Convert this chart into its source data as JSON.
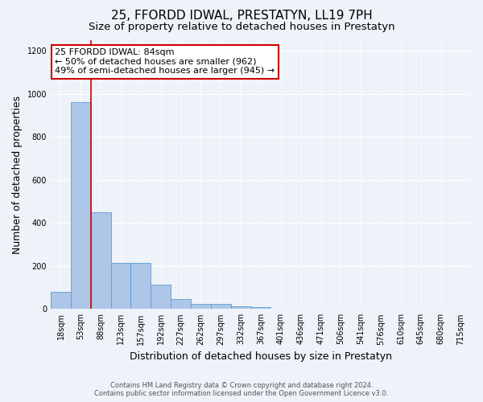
{
  "title": "25, FFORDD IDWAL, PRESTATYN, LL19 7PH",
  "subtitle": "Size of property relative to detached houses in Prestatyn",
  "xlabel": "Distribution of detached houses by size in Prestatyn",
  "ylabel": "Number of detached properties",
  "bar_labels": [
    "18sqm",
    "53sqm",
    "88sqm",
    "123sqm",
    "157sqm",
    "192sqm",
    "227sqm",
    "262sqm",
    "297sqm",
    "332sqm",
    "367sqm",
    "401sqm",
    "436sqm",
    "471sqm",
    "506sqm",
    "541sqm",
    "576sqm",
    "610sqm",
    "645sqm",
    "680sqm",
    "715sqm"
  ],
  "bar_values": [
    80,
    962,
    450,
    215,
    215,
    115,
    45,
    25,
    22,
    12,
    8,
    0,
    0,
    0,
    0,
    0,
    0,
    0,
    0,
    0,
    0
  ],
  "bar_color": "#aec6e8",
  "bar_edge_color": "#5b9bd5",
  "vline_x_index": 2,
  "vline_color": "#cc0000",
  "annotation_text": "25 FFORDD IDWAL: 84sqm\n← 50% of detached houses are smaller (962)\n49% of semi-detached houses are larger (945) →",
  "annotation_box_color": "#ffffff",
  "annotation_box_edge": "#cc0000",
  "ylim": [
    0,
    1250
  ],
  "yticks": [
    0,
    200,
    400,
    600,
    800,
    1000,
    1200
  ],
  "footer_line1": "Contains HM Land Registry data © Crown copyright and database right 2024.",
  "footer_line2": "Contains public sector information licensed under the Open Government Licence v3.0.",
  "background_color": "#eef2f9",
  "plot_background": "#eef2f9",
  "title_fontsize": 11,
  "subtitle_fontsize": 9.5,
  "tick_fontsize": 7,
  "ylabel_fontsize": 9,
  "xlabel_fontsize": 9,
  "annotation_fontsize": 8,
  "footer_fontsize": 6
}
